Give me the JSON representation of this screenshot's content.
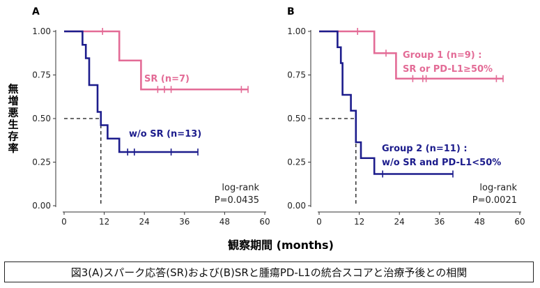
{
  "colors": {
    "group_a": "#e36b96",
    "group_b": "#1c1c8c",
    "axis": "#333333"
  },
  "shared": {
    "ylabel": "無増悪生存率",
    "xlabel": "観察期間 (months)"
  },
  "caption": "図3(A)スパーク応答(SR)および(B)SRと腫瘍PD-L1の統合スコアと治療予後との相関",
  "chart_data": [
    {
      "type": "line",
      "panel": "A",
      "xlim": [
        0,
        60
      ],
      "ylim": [
        0,
        1
      ],
      "xticks": [
        0,
        12,
        24,
        36,
        48,
        60
      ],
      "yticks": [
        "0.00",
        "0.25",
        "0.50",
        "0.75",
        "1.00"
      ],
      "series": [
        {
          "name": "SR (n=7)",
          "label_lines": [
            "SR (n=7)"
          ],
          "color_key": "group_a",
          "steps": [
            [
              0,
              1.0
            ],
            [
              16.5,
              0.833
            ],
            [
              23,
              0.667
            ],
            [
              55,
              0.667
            ]
          ],
          "censors": [
            [
              11.5,
              1.0
            ],
            [
              28,
              0.667
            ],
            [
              30,
              0.667
            ],
            [
              32,
              0.667
            ],
            [
              53,
              0.667
            ],
            [
              55,
              0.667
            ]
          ]
        },
        {
          "name": "w/o SR (n=13)",
          "label_lines": [
            "w/o SR (n=13)"
          ],
          "color_key": "group_b",
          "steps": [
            [
              0,
              1.0
            ],
            [
              5.5,
              0.923
            ],
            [
              6.5,
              0.846
            ],
            [
              7.5,
              0.692
            ],
            [
              10,
              0.538
            ],
            [
              11,
              0.462
            ],
            [
              13,
              0.385
            ],
            [
              16.5,
              0.308
            ],
            [
              40,
              0.308
            ]
          ],
          "censors": [
            [
              19,
              0.308
            ],
            [
              21,
              0.308
            ],
            [
              32,
              0.308
            ],
            [
              40,
              0.308
            ]
          ]
        }
      ],
      "median_x": 11,
      "stat_lines": [
        "log-rank",
        "P=0.0435"
      ]
    },
    {
      "type": "line",
      "panel": "B",
      "xlim": [
        0,
        60
      ],
      "ylim": [
        0,
        1
      ],
      "xticks": [
        0,
        12,
        24,
        36,
        48,
        60
      ],
      "yticks": [
        "0.00",
        "0.25",
        "0.50",
        "0.75",
        "1.00"
      ],
      "series": [
        {
          "name": "Group 1 (n=9) : SR or PD-L1≥50%",
          "label_lines": [
            "Group 1 (n=9) :",
            "SR or PD-L1≥50%"
          ],
          "color_key": "group_a",
          "steps": [
            [
              0,
              1.0
            ],
            [
              16.5,
              0.875
            ],
            [
              23,
              0.729
            ],
            [
              55,
              0.729
            ]
          ],
          "censors": [
            [
              11.5,
              1.0
            ],
            [
              20,
              0.875
            ],
            [
              28,
              0.729
            ],
            [
              31,
              0.729
            ],
            [
              32,
              0.729
            ],
            [
              53,
              0.729
            ],
            [
              55,
              0.729
            ]
          ]
        },
        {
          "name": "Group 2 (n=11) : w/o SR and PD-L1<50%",
          "label_lines": [
            "Group 2 (n=11) :",
            "w/o SR and PD-L1<50%"
          ],
          "color_key": "group_b",
          "steps": [
            [
              0,
              1.0
            ],
            [
              5.5,
              0.909
            ],
            [
              6.5,
              0.818
            ],
            [
              7,
              0.636
            ],
            [
              9.5,
              0.545
            ],
            [
              11,
              0.364
            ],
            [
              12.5,
              0.273
            ],
            [
              16.5,
              0.182
            ],
            [
              40,
              0.182
            ]
          ],
          "censors": [
            [
              19,
              0.182
            ],
            [
              40,
              0.182
            ]
          ]
        }
      ],
      "median_x": 11,
      "stat_lines": [
        "log-rank",
        "P=0.0021"
      ]
    }
  ]
}
